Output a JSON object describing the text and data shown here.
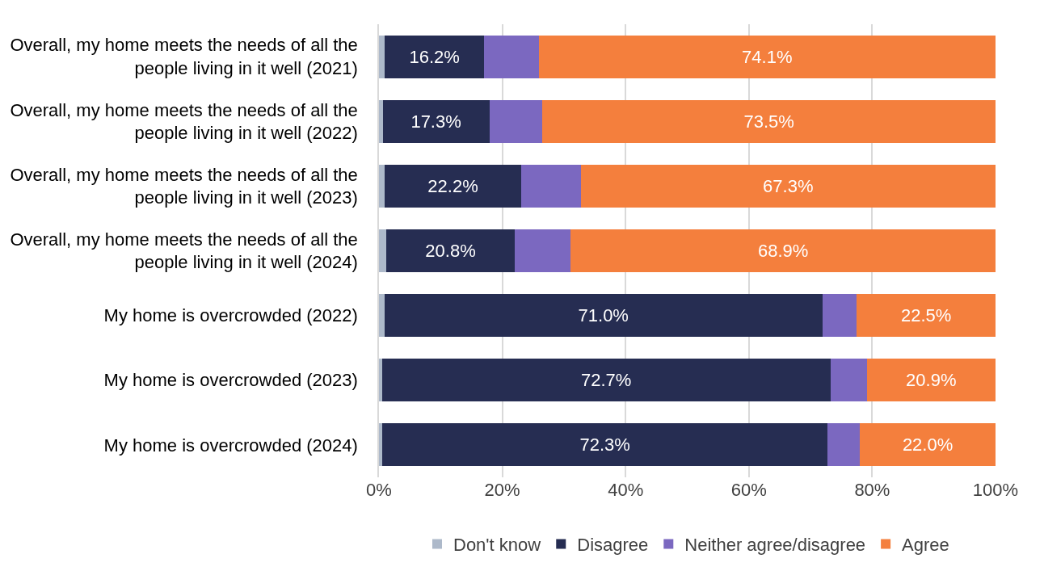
{
  "chart_data": {
    "type": "bar",
    "orientation": "horizontal",
    "stacked": true,
    "categories": [
      "Overall, my home meets the needs of all the people living in it well (2021)",
      "Overall, my home meets the needs of all the people living in it well (2022)",
      "Overall, my home meets the needs of all the people living in it well (2023)",
      "Overall, my home meets the needs of all the people living in it well (2024)",
      "My home is overcrowded (2022)",
      "My home is overcrowded (2023)",
      "My home is overcrowded (2024)"
    ],
    "series": [
      {
        "name": "Don't know",
        "color": "#adb9ca",
        "values": [
          0.9,
          0.6,
          0.9,
          1.2,
          0.9,
          0.5,
          0.5
        ]
      },
      {
        "name": "Disagree",
        "color": "#262d52",
        "values": [
          16.2,
          17.3,
          22.2,
          20.8,
          71.0,
          72.7,
          72.3
        ],
        "value_labels": [
          "16.2%",
          "17.3%",
          "22.2%",
          "20.8%",
          "71.0%",
          "72.7%",
          "72.3%"
        ]
      },
      {
        "name": "Neither agree/disagree",
        "color": "#7b68c0",
        "values": [
          8.8,
          8.6,
          9.6,
          9.1,
          5.6,
          5.9,
          5.2
        ]
      },
      {
        "name": "Agree",
        "color": "#f47f3d",
        "values": [
          74.1,
          73.5,
          67.3,
          68.9,
          22.5,
          20.9,
          22.0
        ],
        "value_labels": [
          "74.1%",
          "73.5%",
          "67.3%",
          "68.9%",
          "22.5%",
          "20.9%",
          "22.0%"
        ]
      }
    ],
    "xlim": [
      0,
      100
    ],
    "xticks": [
      {
        "value": 0,
        "label": "0%"
      },
      {
        "value": 20,
        "label": "20%"
      },
      {
        "value": 40,
        "label": "40%"
      },
      {
        "value": 60,
        "label": "60%"
      },
      {
        "value": 80,
        "label": "80%"
      },
      {
        "value": 100,
        "label": "100%"
      }
    ],
    "grid": "x",
    "legend": "bottom"
  }
}
